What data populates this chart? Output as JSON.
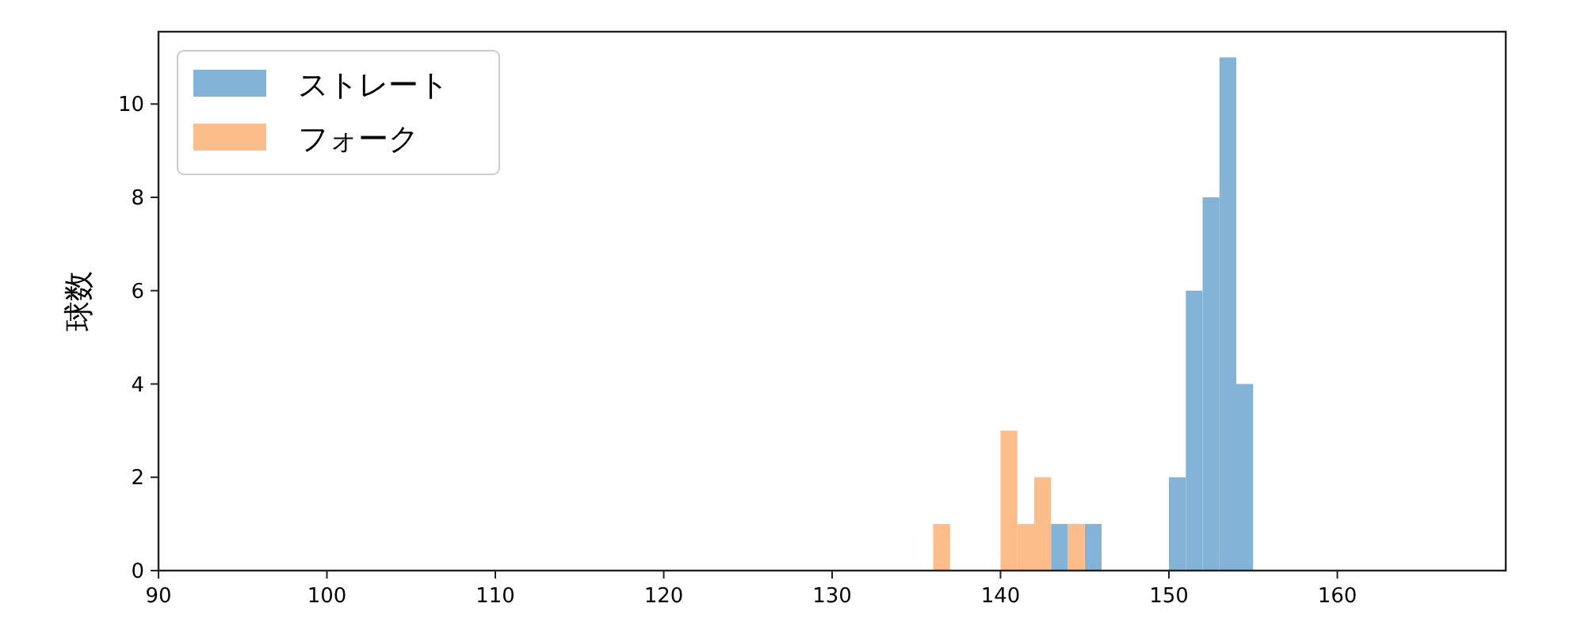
{
  "chart_data": {
    "type": "histogram",
    "ylabel": "球数",
    "bins": [
      136,
      137,
      138,
      139,
      140,
      141,
      142,
      143,
      144,
      145,
      146,
      147,
      148,
      149,
      150,
      151,
      152,
      153,
      154,
      155
    ],
    "series": [
      {
        "name": "ストレート",
        "color": "#84b3d8",
        "values": [
          0,
          0,
          0,
          0,
          0,
          0,
          0,
          1,
          0,
          1,
          0,
          0,
          0,
          0,
          2,
          6,
          8,
          11,
          4
        ]
      },
      {
        "name": "フォーク",
        "color": "#fdbd8a",
        "values": [
          1,
          0,
          0,
          0,
          3,
          1,
          2,
          0,
          1,
          0,
          0,
          0,
          0,
          0,
          0,
          0,
          0,
          0,
          0
        ]
      }
    ],
    "xlim": [
      90,
      170
    ],
    "xticks": [
      90,
      100,
      110,
      120,
      130,
      140,
      150,
      160
    ],
    "ylim": [
      0,
      11.55
    ],
    "yticks": [
      0,
      2,
      4,
      6,
      8,
      10
    ],
    "grid": false,
    "legend": "top left"
  }
}
